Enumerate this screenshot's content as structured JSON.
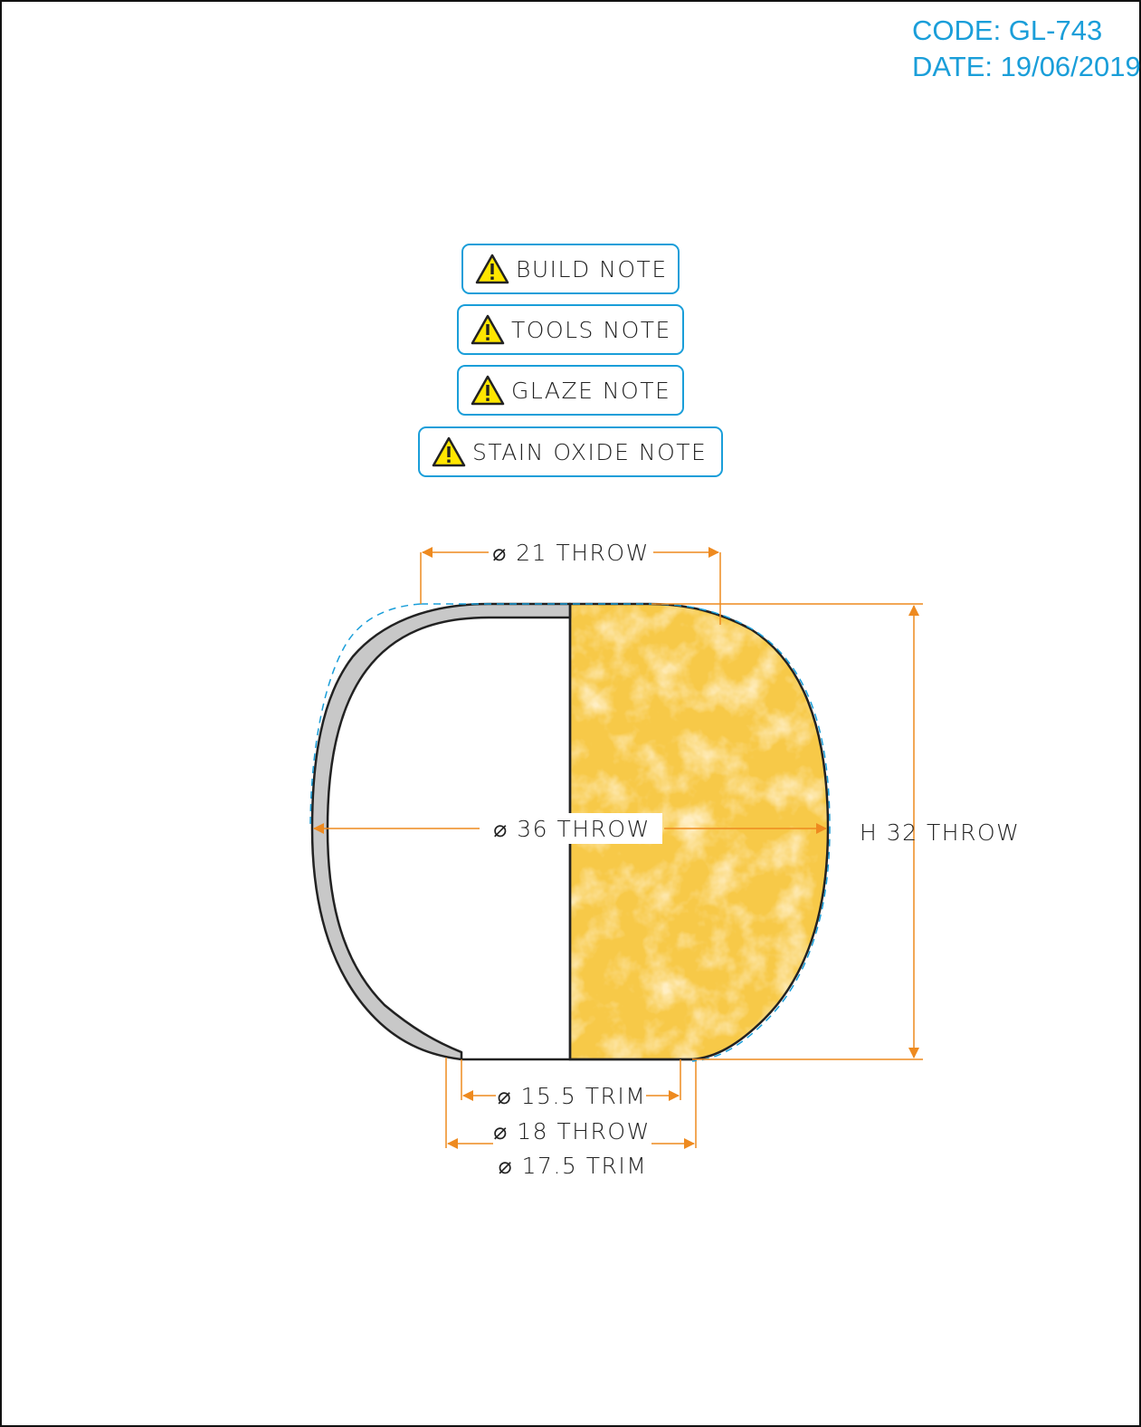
{
  "header": {
    "code": "CODE: GL-743",
    "date": "DATE: 19/06/2019"
  },
  "notes": [
    {
      "label": "BUILD NOTE",
      "icon": "warning-icon"
    },
    {
      "label": "TOOLS NOTE",
      "icon": "warning-icon"
    },
    {
      "label": "GLAZE NOTE",
      "icon": "warning-icon"
    },
    {
      "label": "STAIN OXIDE NOTE",
      "icon": "warning-icon"
    }
  ],
  "dimensions": {
    "top_diameter": "⌀ 21 THROW",
    "max_diameter": "⌀ 36 THROW",
    "height": "H 32 THROW",
    "foot_inner_trim": "⌀ 15.5 TRIM",
    "foot_throw": "⌀ 18 THROW",
    "foot_outer_trim": "⌀ 17.5 TRIM"
  },
  "colors": {
    "accent_blue": "#1a9ed9",
    "dimension_orange": "#ee8a1f",
    "glaze_yellow": "#f7c948",
    "wall_gray": "#c8c8c8",
    "outline": "#222222",
    "warning_yellow": "#ffe600"
  }
}
